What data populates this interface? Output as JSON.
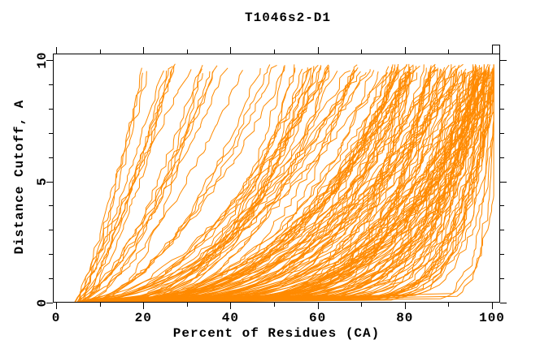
{
  "chart_data": {
    "type": "line",
    "title": "T1046s2-D1",
    "xlabel": "Percent of Residues (CA)",
    "ylabel": "Distance Cutoff, A",
    "xlim": [
      -0.75,
      101.87
    ],
    "ylim": [
      0,
      10.27
    ],
    "xticks_major": [
      0,
      20,
      40,
      60,
      80,
      100
    ],
    "xticks_minor": [
      10,
      30,
      50,
      70,
      90
    ],
    "yticks_major": [
      0,
      5,
      10
    ],
    "yticks_minor": [
      1,
      2,
      3,
      4,
      6,
      7,
      8,
      9
    ],
    "grid": false,
    "legend": "none",
    "background": "#ffffff",
    "axis_color": "#000000",
    "line_color": "#ff8a00",
    "description": "Cumulative distance-cutoff curves for ~185 predicted models of target T1046s2-D1. Each orange line shows, for one model, the percent of CA residues (x) superimposable under a distance cutoff (y, Angstroms). Curves start near 4-6% at 0 A; the steepest model reaches the ~9.7 A top near x=20%, a mid group between 30-75%, and the densest bundle reaches it between 75% and 100%, with a few poor models hugging y<1 until x>90% then rising vertically at the right edge.",
    "curves": {
      "seed": 1046,
      "count": 185,
      "segments": 46,
      "jitter": 0.9,
      "x_start_min": 4.0,
      "x_start_max": 6.8,
      "y_top_min": 9.45,
      "y_top_max": 9.85,
      "x_clip": 100.4,
      "clusters": [
        {
          "weight": 0.05,
          "reach_min": 18,
          "reach_max": 32,
          "q_min": 0.55,
          "q_max": 1.15
        },
        {
          "weight": 0.1,
          "reach_min": 32,
          "reach_max": 52,
          "q_min": 0.4,
          "q_max": 0.85
        },
        {
          "weight": 0.2,
          "reach_min": 52,
          "reach_max": 77,
          "q_min": 0.25,
          "q_max": 0.6
        },
        {
          "weight": 0.35,
          "reach_min": 77,
          "reach_max": 95,
          "q_min": 0.1,
          "q_max": 0.4
        },
        {
          "weight": 0.25,
          "reach_min": 95,
          "reach_max": 102,
          "q_min": 0.06,
          "q_max": 0.3
        },
        {
          "weight": 0.05,
          "reach_min": 98,
          "reach_max": 103,
          "q_min": 0.025,
          "q_max": 0.09
        }
      ]
    }
  }
}
